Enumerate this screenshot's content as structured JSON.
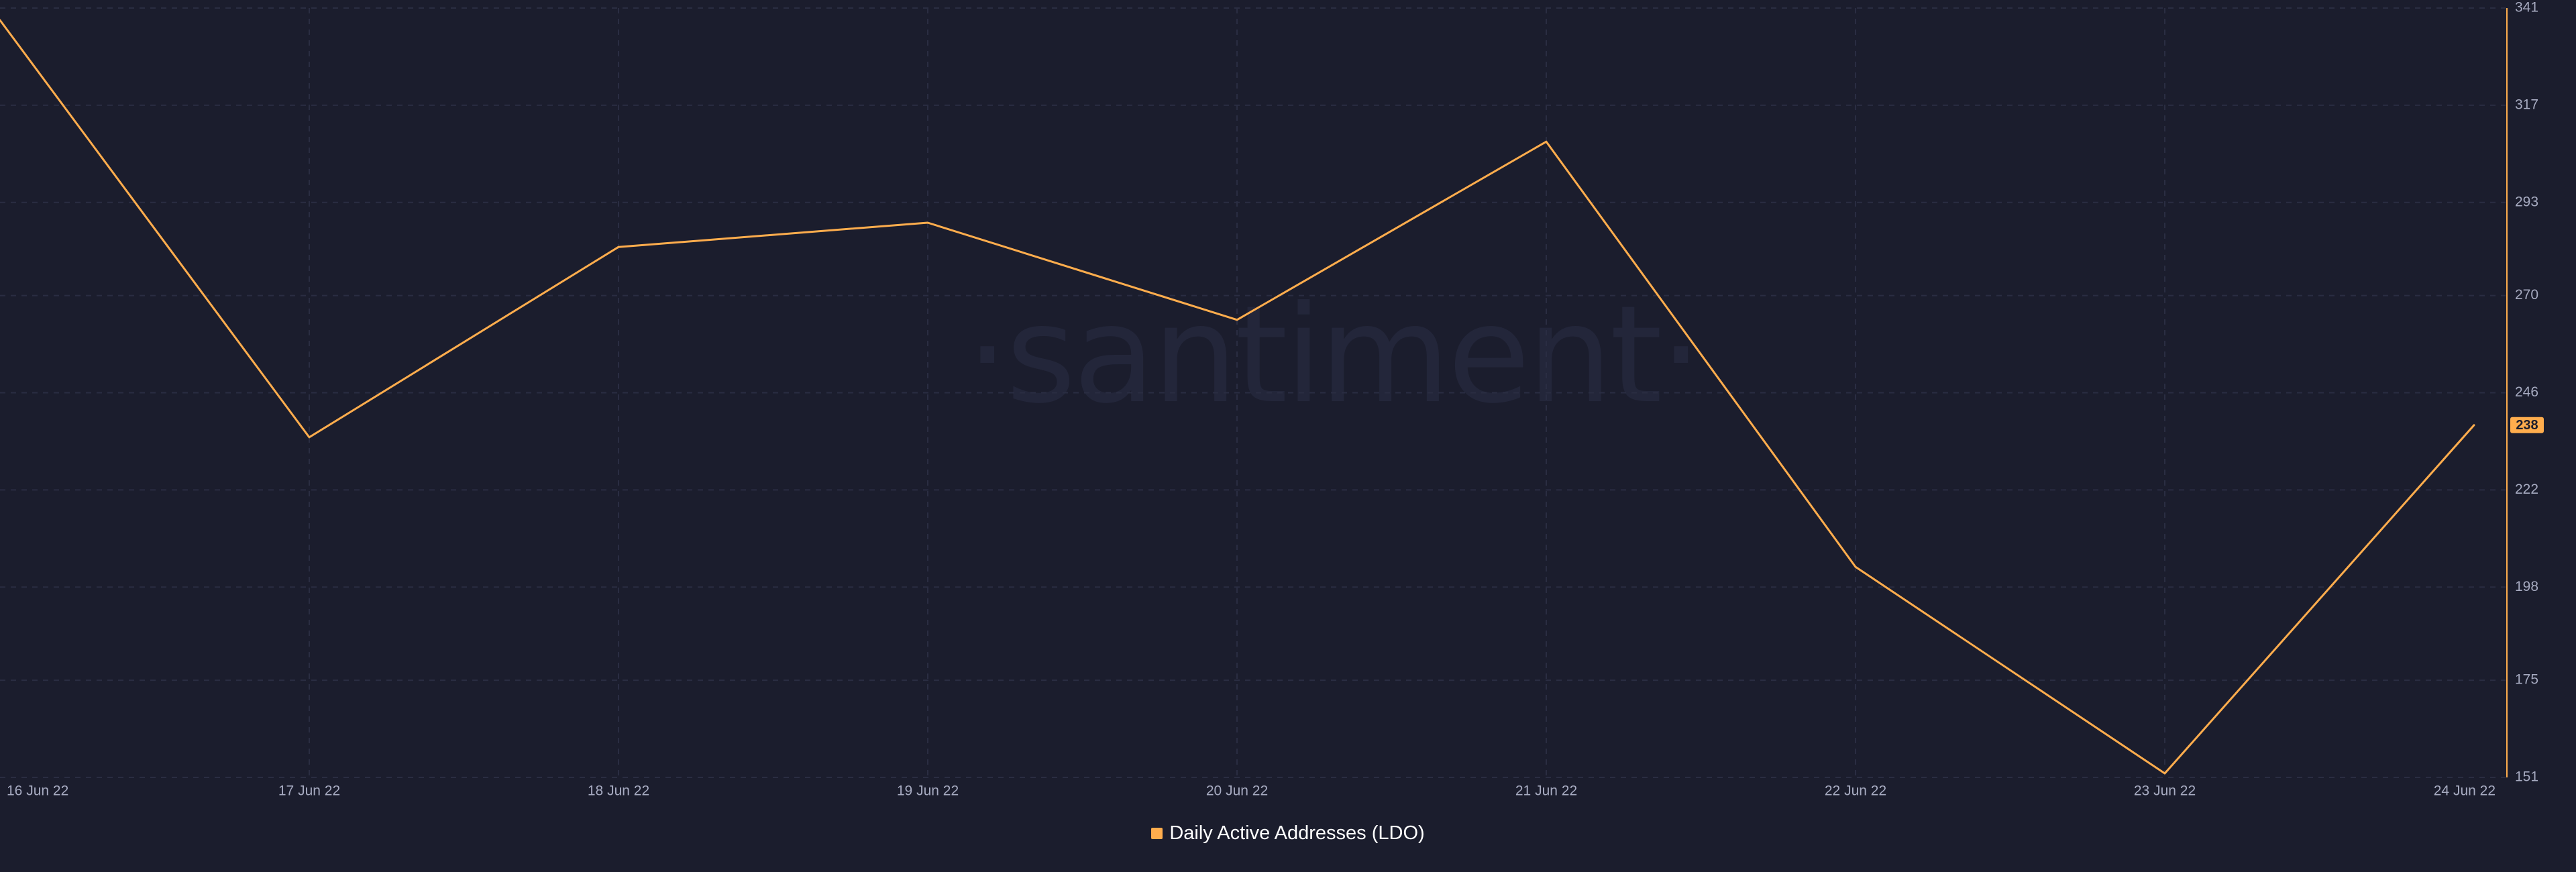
{
  "watermark": "·santiment·",
  "colors": {
    "background": "#1b1d2d",
    "series": "#ffad4d",
    "grid": "#2a2d42",
    "tick_label": "#a7abc1",
    "badge_text": "#1b1d2d"
  },
  "chart_data": {
    "type": "line",
    "title": "",
    "xlabel": "",
    "ylabel": "",
    "x": [
      "16 Jun 22",
      "17 Jun 22",
      "18 Jun 22",
      "19 Jun 22",
      "20 Jun 22",
      "21 Jun 22",
      "22 Jun 22",
      "23 Jun 22",
      "24 Jun 22"
    ],
    "xticks": [
      "16 Jun 22",
      "17 Jun 22",
      "18 Jun 22",
      "19 Jun 22",
      "20 Jun 22",
      "21 Jun 22",
      "22 Jun 22",
      "23 Jun 22",
      "24 Jun 22"
    ],
    "yticks": [
      151,
      175,
      198,
      222,
      246,
      270,
      293,
      317,
      341
    ],
    "ylim": [
      151,
      341
    ],
    "y_axis_position": "right",
    "grid": true,
    "legend_position": "bottom-center",
    "series": [
      {
        "name": "Daily Active Addresses (LDO)",
        "values": [
          338,
          235,
          282,
          288,
          264,
          308,
          203,
          152,
          238
        ]
      }
    ],
    "last_value_badge": "238"
  }
}
